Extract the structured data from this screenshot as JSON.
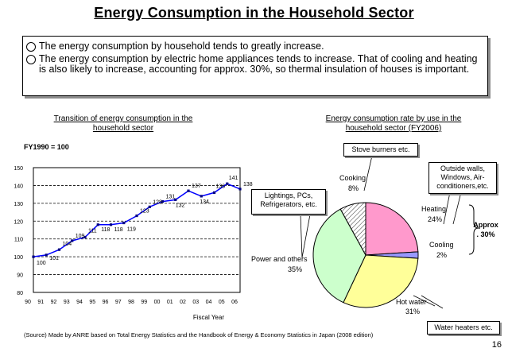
{
  "page_title": "Energy Consumption in the Household Sector",
  "bullets": [
    "The energy consumption by household tends to greatly increase.",
    "The energy consumption by electric home appliances tends to increase. That of cooling and heating is also likely to increase, accounting for approx. 30%, so thermal insulation of houses is important."
  ],
  "line_chart_title": [
    "Transition of energy consumption in the",
    "household sector"
  ],
  "pie_chart_title": [
    "Energy consumption rate by use in the",
    "household sector (FY2006)"
  ],
  "base_note": "FY1990 = 100",
  "chart_data": [
    {
      "type": "line",
      "title": "Transition of energy consumption in the household sector",
      "xlabel": "Fiscal Year",
      "ylabel": "",
      "x": [
        "90",
        "91",
        "92",
        "93",
        "94",
        "95",
        "96",
        "97",
        "98",
        "99",
        "00",
        "01",
        "02",
        "03",
        "04",
        "05",
        "06"
      ],
      "values": [
        100,
        101,
        104,
        109,
        111,
        118,
        118,
        119,
        123,
        128,
        131,
        132,
        137,
        134,
        136,
        141,
        138
      ],
      "yticks": [
        80,
        90,
        100,
        110,
        120,
        130,
        140,
        150
      ],
      "ylim": [
        80,
        150
      ],
      "grid": "horizontal-dashed"
    },
    {
      "type": "pie",
      "title": "Energy consumption rate by use in the household sector (FY2006)",
      "slices": [
        {
          "label": "Heating",
          "pct": "24%",
          "value": 24,
          "color": "#ff99cc"
        },
        {
          "label": "Cooling",
          "pct": "2%",
          "value": 2,
          "color": "#9999ff"
        },
        {
          "label": "Hot water",
          "pct": "31%",
          "value": 31,
          "color": "#ffff99"
        },
        {
          "label": "Power and others",
          "pct": "35%",
          "value": 35,
          "color": "#ccffcc"
        },
        {
          "label": "Cooking",
          "pct": "8%",
          "value": 8,
          "color": "#ffffff",
          "pattern": "hatch"
        }
      ]
    }
  ],
  "callouts": {
    "stove": "Stove burners etc.",
    "outside": [
      "Outside walls,",
      "Windows, Air-",
      "conditioners,etc."
    ],
    "lightings": [
      "Lightings, PCs,",
      "Refrigerators, etc."
    ],
    "water_heaters": "Water heaters etc."
  },
  "approx": [
    "Approx",
    ". 30%"
  ],
  "source": "(Source) Made by ANRE based on Total Energy Statistics and the Handbook of Energy & Economy Statistics in Japan (2008 edition)",
  "page_number": "16"
}
